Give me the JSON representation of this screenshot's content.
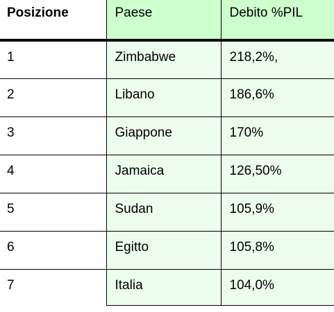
{
  "table": {
    "headers": {
      "position": "Posizione",
      "country": "Paese",
      "debt": "Debito %PIL"
    },
    "rows": [
      {
        "position": "1",
        "country": "Zimbabwe",
        "debt": "218,2%,"
      },
      {
        "position": "2",
        "country": "Libano",
        "debt": "186,6%"
      },
      {
        "position": "3",
        "country": "Giappone",
        "debt": "170%"
      },
      {
        "position": "4",
        "country": "Jamaica",
        "debt": "126,50%"
      },
      {
        "position": "5",
        "country": "Sudan",
        "debt": "105,9%"
      },
      {
        "position": "6",
        "country": "Egitto",
        "debt": "105,8%"
      },
      {
        "position": "7",
        "country": "Italia",
        "debt": "104,0%"
      }
    ]
  },
  "colors": {
    "header_green": "#ccffcc",
    "cell_green": "#ecfdeb"
  }
}
